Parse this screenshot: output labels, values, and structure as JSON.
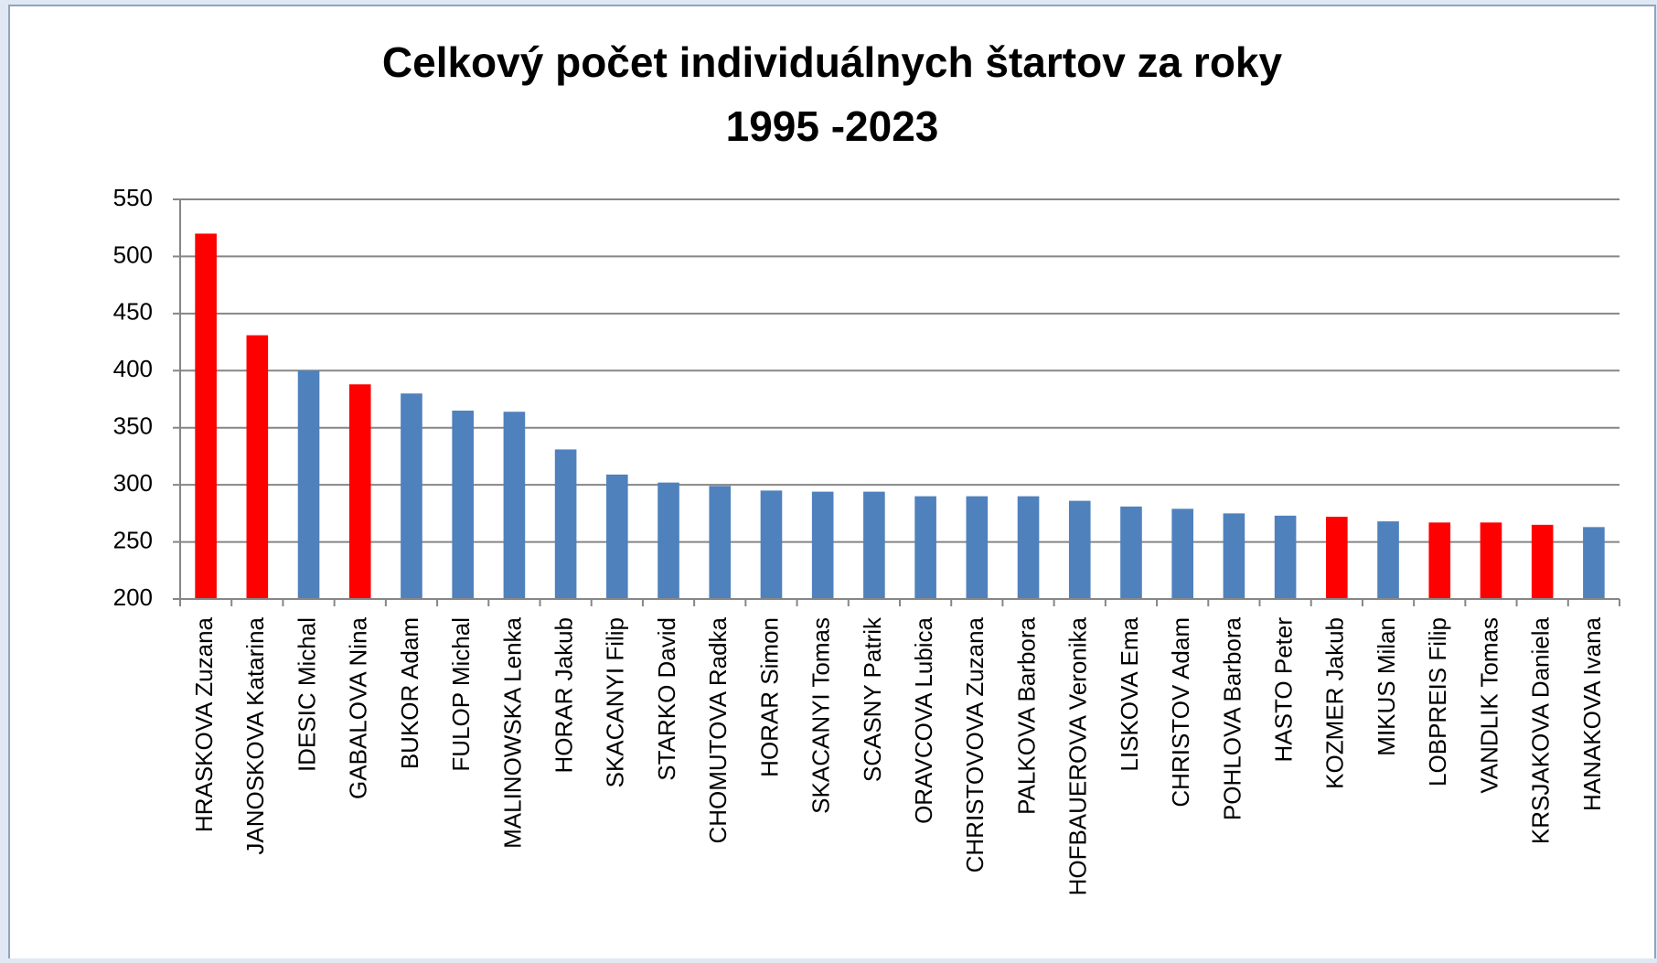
{
  "chart_data": {
    "type": "bar",
    "title": "Celkový počet individuálnych štartov za roky",
    "subtitle": "1995 -2023",
    "categories": [
      "HRASKOVA Zuzana",
      "JANOSKOVA Katarina",
      "IDESIC Michal",
      "GABALOVA Nina",
      "BUKOR Adam",
      "FULOP Michal",
      "MALINOWSKA Lenka",
      "HORAR Jakub",
      "SKACANYI Filip",
      "STARKO David",
      "CHOMUTOVA Radka",
      "HORAR Simon",
      "SKACANYI Tomas",
      "SCASNY Patrik",
      "ORAVCOVA Lubica",
      "CHRISTOVOVA Zuzana",
      "PALKOVA Barbora",
      "HOFBAUEROVA Veronika",
      "LISKOVA Ema",
      "CHRISTOV Adam",
      "POHLOVA Barbora",
      "HASTO Peter",
      "KOZMER Jakub",
      "MIKUS Milan",
      "LOBPREIS Filip",
      "VANDLIK Tomas",
      "KRSJAKOVA Daniela",
      "HANAKOVA Ivana"
    ],
    "values": [
      520,
      431,
      400,
      388,
      380,
      365,
      364,
      331,
      309,
      302,
      299,
      295,
      294,
      294,
      290,
      290,
      290,
      286,
      281,
      279,
      275,
      273,
      272,
      268,
      267,
      267,
      265,
      263
    ],
    "colors": [
      "#ff0000",
      "#ff0000",
      "#4f81bd",
      "#ff0000",
      "#4f81bd",
      "#4f81bd",
      "#4f81bd",
      "#4f81bd",
      "#4f81bd",
      "#4f81bd",
      "#4f81bd",
      "#4f81bd",
      "#4f81bd",
      "#4f81bd",
      "#4f81bd",
      "#4f81bd",
      "#4f81bd",
      "#4f81bd",
      "#4f81bd",
      "#4f81bd",
      "#4f81bd",
      "#4f81bd",
      "#ff0000",
      "#4f81bd",
      "#ff0000",
      "#ff0000",
      "#ff0000",
      "#4f81bd"
    ],
    "ylim": [
      200,
      550
    ],
    "yticks": [
      200,
      250,
      300,
      350,
      400,
      450,
      500,
      550
    ],
    "grid": true
  }
}
